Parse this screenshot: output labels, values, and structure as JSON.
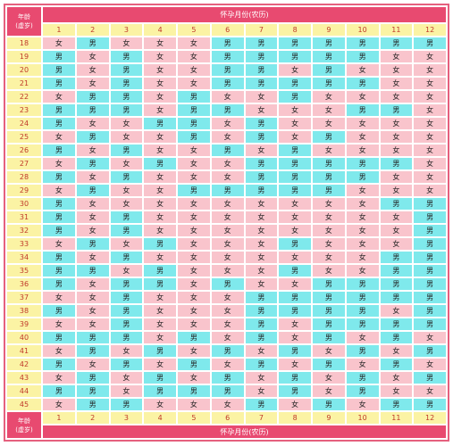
{
  "corner_label_line1": "年龄",
  "corner_label_line2": "(虚岁)",
  "header_title": "怀孕月份(农历)",
  "months": [
    "1",
    "2",
    "3",
    "4",
    "5",
    "6",
    "7",
    "8",
    "9",
    "10",
    "11",
    "12"
  ],
  "symbols": {
    "M": "男",
    "F": "女"
  },
  "colors": {
    "male_cell": "#7fe9ec",
    "female_cell": "#f9c4cc",
    "header_pink": "#e84a70",
    "label_yellow": "#fbf3a4",
    "label_text": "#c0392b"
  },
  "rows": [
    {
      "age": "18",
      "cells": "FMFFFMMMMMMM"
    },
    {
      "age": "19",
      "cells": "MFMFFMMMMMFF"
    },
    {
      "age": "20",
      "cells": "MFMFFMMFMFFF"
    },
    {
      "age": "21",
      "cells": "MFMFFMMMMMFF"
    },
    {
      "age": "22",
      "cells": "FMMFMFFMFFFF"
    },
    {
      "age": "23",
      "cells": "MMMFMMFFFMMF"
    },
    {
      "age": "24",
      "cells": "MFFMMFMFFFFF"
    },
    {
      "age": "25",
      "cells": "FMFFMFMFMFFF"
    },
    {
      "age": "26",
      "cells": "MFMFFMFMFFFF"
    },
    {
      "age": "27",
      "cells": "FMFMFFMMMMMF"
    },
    {
      "age": "28",
      "cells": "MFMFFFMMMMFF"
    },
    {
      "age": "29",
      "cells": "FMFFMMMMMFFF"
    },
    {
      "age": "30",
      "cells": "MFFFFFFFFFMM"
    },
    {
      "age": "31",
      "cells": "MFMFFFFFFFFM"
    },
    {
      "age": "32",
      "cells": "MFMFFFFFFFFM"
    },
    {
      "age": "33",
      "cells": "FMFMFFFMFFFM"
    },
    {
      "age": "34",
      "cells": "MFMFFFFFFFMM"
    },
    {
      "age": "35",
      "cells": "MMFMFFFMFFMM"
    },
    {
      "age": "36",
      "cells": "MFMMFMFFMMMM"
    },
    {
      "age": "37",
      "cells": "FFMFFFMMMMMM"
    },
    {
      "age": "38",
      "cells": "MFMFFFMMMMFM"
    },
    {
      "age": "39",
      "cells": "FFMFFFMFMMMM"
    },
    {
      "age": "40",
      "cells": "MMMFMFMFMFMF"
    },
    {
      "age": "41",
      "cells": "FMFMFMFMFMFM"
    },
    {
      "age": "42",
      "cells": "MFMFMFMFMFMF"
    },
    {
      "age": "43",
      "cells": "FMFMFMFMFMFM"
    },
    {
      "age": "44",
      "cells": "MMFMMMFMFMFF"
    },
    {
      "age": "45",
      "cells": "FMMFFFMFMFMM"
    }
  ],
  "footer_corner_line1": "年龄",
  "footer_corner_line2": "(虚岁)",
  "footer_title": "怀孕月份(农历)"
}
